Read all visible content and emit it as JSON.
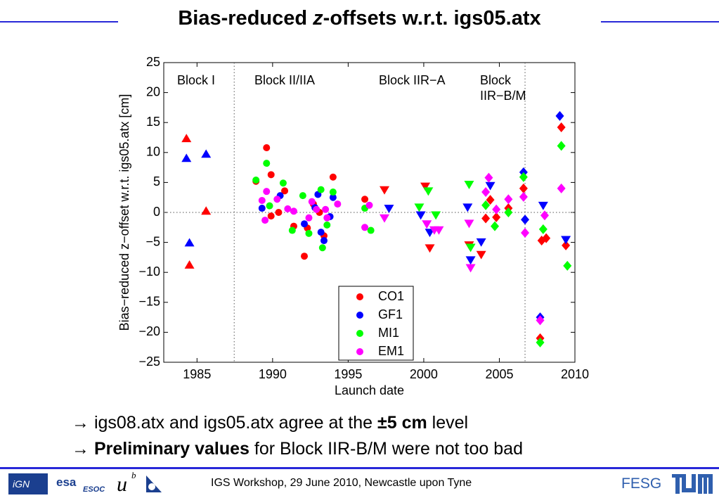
{
  "title_parts": [
    "Bias-reduced ",
    "z",
    "-offsets w.r.t. igs05.atx"
  ],
  "chart_data": {
    "type": "scatter",
    "xlabel": "Launch date",
    "ylabel": "Bias−reduced z−offset w.r.t. igs05.atx [cm]",
    "xlim": [
      1982.8,
      2010
    ],
    "ylim": [
      -25,
      25
    ],
    "xticks": [
      1985,
      1990,
      1995,
      2000,
      2005,
      2010
    ],
    "yticks": [
      {
        "value": -25,
        "label": "−25"
      },
      {
        "value": -20,
        "label": "−20"
      },
      {
        "value": -15,
        "label": "−15"
      },
      {
        "value": -10,
        "label": "−10"
      },
      {
        "value": -5,
        "label": "−5"
      },
      0,
      5,
      10,
      15,
      20,
      25
    ],
    "vlines": [
      1987.46,
      2006.7
    ],
    "hline": 0,
    "annotations": [
      [
        "Block I"
      ],
      [
        "Block II/IIA"
      ],
      [
        "Block IIR−A"
      ],
      [
        "Block",
        "IIR−B/M"
      ]
    ],
    "legend": "lower center",
    "series": [
      {
        "name": "CO1",
        "color": "#ff0000",
        "x": [
          1984.3,
          1984.5,
          1985.6,
          1989.6,
          1989.9,
          1988.9,
          1990.8,
          1990.4,
          1989.9,
          1992.1,
          1992.3,
          1993.1,
          1994.0,
          1993.4,
          1991.4,
          1992.7,
          1996.1,
          1997.4,
          2000.1,
          2000.4,
          2003.0,
          2003.8,
          2004.1,
          2004.4,
          2004.8,
          2005.6,
          2006.6,
          2007.8,
          2008.1,
          2009.1,
          2009.4,
          2007.7
        ],
        "values": [
          12.3,
          -8.8,
          0.2,
          10.8,
          6.3,
          5.2,
          3.6,
          0,
          -0.6,
          -7.3,
          -2.6,
          0,
          5.9,
          -3.9,
          -2.3,
          1.4,
          2.2,
          3.8,
          4.4,
          -5.9,
          -5.4,
          -7,
          -1,
          2.1,
          -0.8,
          0.7,
          4,
          -4.7,
          -4.3,
          14.2,
          -5.5,
          -21
        ],
        "markers": [
          "^",
          "^",
          "^",
          "o",
          "o",
          "o",
          "o",
          "o",
          "o",
          "o",
          "o",
          "o",
          "o",
          "o",
          "o",
          "o",
          "o",
          "v",
          "v",
          "v",
          "v",
          "v",
          "D",
          "D",
          "D",
          "D",
          "D",
          "D",
          "D",
          "D",
          "D",
          "D"
        ]
      },
      {
        "name": "GF1",
        "color": "#0000ff",
        "x": [
          1984.3,
          1984.5,
          1985.6,
          1989.3,
          1990.5,
          1992.1,
          1992.8,
          1993.2,
          1993.8,
          1993.0,
          1994.0,
          1993.4,
          1997.7,
          1999.8,
          2000.4,
          2002.9,
          2003.1,
          2003.8,
          2004.4,
          2006.6,
          2006.7,
          2007.9,
          2009.0,
          2009.4,
          2007.7
        ],
        "values": [
          9,
          -5.1,
          9.7,
          0.7,
          2.8,
          -1.9,
          0.8,
          -3.3,
          -0.7,
          3,
          2.5,
          -4.7,
          0.7,
          -0.4,
          -3.3,
          0.9,
          -7.9,
          -4.9,
          4.5,
          6.7,
          -1.2,
          1.2,
          16.1,
          -4.5,
          -17.5
        ],
        "markers": [
          "^",
          "^",
          "^",
          "o",
          "o",
          "o",
          "o",
          "o",
          "o",
          "o",
          "o",
          "o",
          "v",
          "v",
          "v",
          "v",
          "v",
          "v",
          "v",
          "D",
          "D",
          "v",
          "D",
          "v",
          "D"
        ]
      },
      {
        "name": "MI1",
        "color": "#00ff00",
        "x": [
          1988.9,
          1989.6,
          1990.7,
          1989.8,
          1991.3,
          1992.0,
          1993.2,
          1994.0,
          1993.3,
          1992.4,
          1993.6,
          1996.1,
          1996.5,
          1999.7,
          2000.3,
          2000.8,
          2003.0,
          2003.1,
          2004.1,
          2004.7,
          2005.6,
          2006.6,
          2007.9,
          2009.1,
          2009.5,
          2007.7
        ],
        "values": [
          5.4,
          8.2,
          4.9,
          1.1,
          -3,
          2.8,
          3.8,
          3.4,
          -5.9,
          -3.5,
          -2.1,
          0.7,
          -3,
          0.9,
          3.6,
          -0.4,
          4.7,
          -5.8,
          1.2,
          -2.3,
          0,
          5.9,
          -2.8,
          11.1,
          -8.9,
          -21.7
        ],
        "markers": [
          "o",
          "o",
          "o",
          "o",
          "o",
          "o",
          "o",
          "o",
          "o",
          "o",
          "o",
          "o",
          "o",
          "v",
          "v",
          "v",
          "v",
          "v",
          "D",
          "D",
          "D",
          "D",
          "D",
          "D",
          "D",
          "D"
        ]
      },
      {
        "name": "EM1",
        "color": "#ff00ff",
        "x": [
          1989.6,
          1989.3,
          1990.3,
          1989.5,
          1991.0,
          1991.4,
          1992.6,
          1992.9,
          1993.5,
          1993.6,
          1992.4,
          1994.3,
          1996.1,
          1996.4,
          1997.4,
          2000.2,
          2000.7,
          2001.0,
          2003.0,
          2003.1,
          2004.3,
          2004.1,
          2004.8,
          2005.6,
          2006.6,
          2006.7,
          2008.0,
          2009.1,
          2007.7
        ],
        "values": [
          3.5,
          2,
          2.2,
          -1.3,
          0.6,
          0.2,
          1.8,
          0.5,
          0.5,
          -0.9,
          -0.9,
          1.4,
          -2.5,
          1.2,
          -0.9,
          -1.9,
          -2.9,
          -2.9,
          -1.8,
          -9.2,
          5.8,
          3.4,
          0.5,
          2.2,
          2.6,
          -3.4,
          -0.5,
          4,
          -18
        ],
        "markers": [
          "o",
          "o",
          "o",
          "o",
          "o",
          "o",
          "o",
          "o",
          "o",
          "o",
          "o",
          "o",
          "o",
          "o",
          "v",
          "v",
          "v",
          "v",
          "v",
          "v",
          "D",
          "D",
          "D",
          "D",
          "D",
          "D",
          "D",
          "D",
          "D"
        ]
      }
    ]
  },
  "bullets": [
    [
      {
        "text": "→ ",
        "bold": false
      },
      {
        "text": "igs08.atx and igs05.atx agree at the ",
        "bold": false
      },
      {
        "text": "±5 cm",
        "bold": true
      },
      {
        "text": " level",
        "bold": false
      }
    ],
    [
      {
        "text": "→ ",
        "bold": false
      },
      {
        "text": "Preliminary values",
        "bold": true
      },
      {
        "text": " for Block IIR-B/M were not too bad",
        "bold": false
      }
    ]
  ],
  "footer": {
    "text": "IGS Workshop, 29 June 2010, Newcastle upon Tyne",
    "brand": "FESG",
    "logos": [
      "iGN",
      "esa",
      "ESOC",
      "u",
      "b"
    ]
  }
}
